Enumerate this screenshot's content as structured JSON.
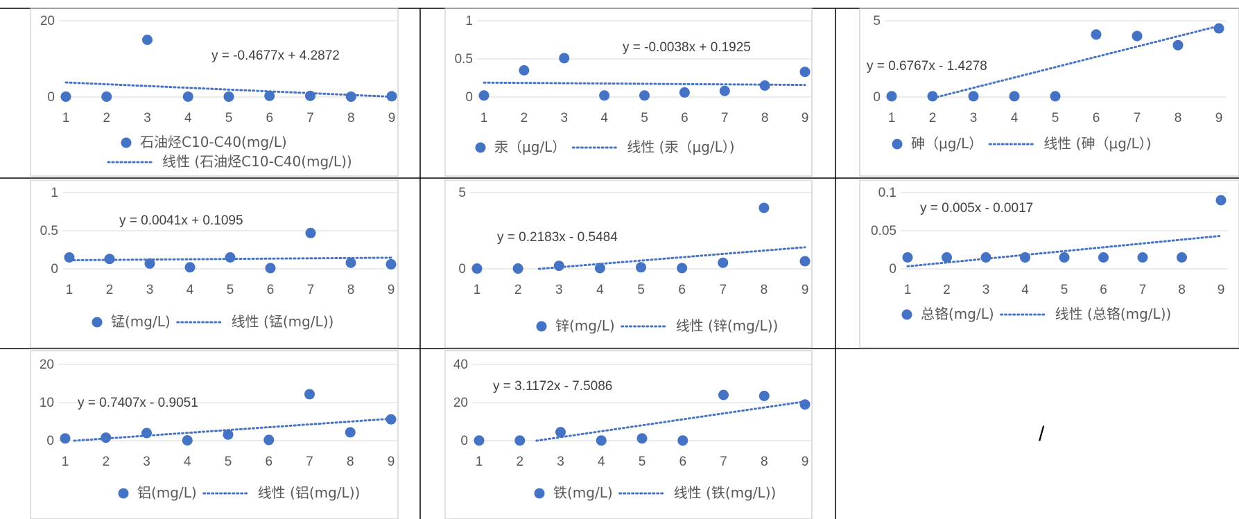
{
  "colors": {
    "marker": "#4472C4",
    "trend": "#4472C4",
    "gridline": "#D9D9D9",
    "text": "#595959",
    "frame": "#BFBFBF",
    "table_border": "#000000"
  },
  "empty_cell_mark": "/",
  "chart_data": [
    {
      "type": "scatter",
      "trendline": "linear",
      "x": [
        1,
        2,
        3,
        4,
        5,
        6,
        7,
        8,
        9
      ],
      "series": [
        {
          "name": "石油烃C10-C40(mg/L)",
          "values": [
            0.1,
            0.1,
            15,
            0.1,
            0.1,
            0.3,
            0.3,
            0.1,
            0.2
          ]
        }
      ],
      "trend_name": "线性 (石油烃C10-C40(mg/L))",
      "equation": "y = -0.4677x + 4.2872",
      "slope": -0.4677,
      "intercept": 4.2872,
      "ylim": [
        0,
        20
      ],
      "yticks": [
        "0",
        "20"
      ],
      "grid": true,
      "legend": "bottom",
      "legend_layout": "two-line"
    },
    {
      "type": "scatter",
      "trendline": "linear",
      "x": [
        1,
        2,
        3,
        4,
        5,
        6,
        7,
        8,
        9
      ],
      "series": [
        {
          "name": "汞（μg/L）",
          "values": [
            0.02,
            0.35,
            0.51,
            0.02,
            0.02,
            0.06,
            0.08,
            0.15,
            0.33
          ]
        }
      ],
      "trend_name": "线性 (汞（μg/L）)",
      "equation": "y = -0.0038x + 0.1925",
      "slope": -0.0038,
      "intercept": 0.1925,
      "ylim": [
        0,
        1
      ],
      "yticks": [
        "0",
        "0.5",
        "1"
      ],
      "grid": true,
      "legend": "bottom",
      "legend_layout": "one-line"
    },
    {
      "type": "scatter",
      "trendline": "linear",
      "x": [
        1,
        2,
        3,
        4,
        5,
        6,
        7,
        8,
        9
      ],
      "series": [
        {
          "name": "砷（μg/L）",
          "values": [
            0.05,
            0.05,
            0.05,
            0.05,
            0.05,
            4.1,
            4.0,
            3.4,
            4.5
          ]
        }
      ],
      "trend_name": "线性 (砷（μg/L）)",
      "equation": "y = 0.6767x - 1.4278",
      "slope": 0.6767,
      "intercept": -1.4278,
      "ylim": [
        0,
        5
      ],
      "yticks": [
        "0",
        "5"
      ],
      "grid": true,
      "legend": "bottom",
      "legend_layout": "one-line"
    },
    {
      "type": "scatter",
      "trendline": "linear",
      "x": [
        1,
        2,
        3,
        4,
        5,
        6,
        7,
        8,
        9
      ],
      "series": [
        {
          "name": "锰(mg/L)",
          "values": [
            0.15,
            0.13,
            0.07,
            0.02,
            0.15,
            0.01,
            0.47,
            0.08,
            0.06
          ]
        }
      ],
      "trend_name": "线性 (锰(mg/L))",
      "equation": "y = 0.0041x + 0.1095",
      "slope": 0.0041,
      "intercept": 0.1095,
      "ylim": [
        0,
        1
      ],
      "yticks": [
        "0",
        "0.5",
        "1"
      ],
      "grid": true,
      "legend": "bottom",
      "legend_layout": "one-line"
    },
    {
      "type": "scatter",
      "trendline": "linear",
      "x": [
        1,
        2,
        3,
        4,
        5,
        6,
        7,
        8,
        9
      ],
      "series": [
        {
          "name": "锌(mg/L)",
          "values": [
            0.02,
            0.02,
            0.2,
            0.05,
            0.1,
            0.05,
            0.4,
            4.0,
            0.5
          ]
        }
      ],
      "trend_name": "线性 (锌(mg/L))",
      "equation": "y = 0.2183x - 0.5484",
      "slope": 0.2183,
      "intercept": -0.5484,
      "ylim": [
        0,
        5
      ],
      "yticks": [
        "0",
        "5"
      ],
      "grid": true,
      "legend": "bottom",
      "legend_layout": "one-line"
    },
    {
      "type": "scatter",
      "trendline": "linear",
      "x": [
        1,
        2,
        3,
        4,
        5,
        6,
        7,
        8,
        9
      ],
      "series": [
        {
          "name": "总铬(mg/L)",
          "values": [
            0.015,
            0.015,
            0.015,
            0.015,
            0.015,
            0.015,
            0.015,
            0.015,
            0.09
          ]
        }
      ],
      "trend_name": "线性 (总铬(mg/L))",
      "equation": "y = 0.005x - 0.0017",
      "slope": 0.005,
      "intercept": -0.0017,
      "ylim": [
        0,
        0.1
      ],
      "yticks": [
        "0",
        "0.05",
        "0.1"
      ],
      "grid": true,
      "legend": "bottom",
      "legend_layout": "one-line"
    },
    {
      "type": "scatter",
      "trendline": "linear",
      "x": [
        1,
        2,
        3,
        4,
        5,
        6,
        7,
        8,
        9
      ],
      "series": [
        {
          "name": "铝(mg/L)",
          "values": [
            0.6,
            0.8,
            2.0,
            0.1,
            1.6,
            0.2,
            12.2,
            2.2,
            5.6
          ]
        }
      ],
      "trend_name": "线性 (铝(mg/L))",
      "equation": "y = 0.7407x - 0.9051",
      "slope": 0.7407,
      "intercept": -0.9051,
      "ylim": [
        0,
        20
      ],
      "yticks": [
        "0",
        "10",
        "20"
      ],
      "grid": true,
      "legend": "bottom",
      "legend_layout": "one-line"
    },
    {
      "type": "scatter",
      "trendline": "linear",
      "x": [
        1,
        2,
        3,
        4,
        5,
        6,
        7,
        8,
        9
      ],
      "series": [
        {
          "name": "铁(mg/L)",
          "values": [
            0.1,
            0.1,
            4.5,
            0.1,
            1.2,
            0.1,
            24,
            23.5,
            19
          ]
        }
      ],
      "trend_name": "线性 (铁(mg/L))",
      "equation": "y = 3.1172x - 7.5086",
      "slope": 3.1172,
      "intercept": -7.5086,
      "ylim": [
        0,
        40
      ],
      "yticks": [
        "0",
        "20",
        "40"
      ],
      "grid": true,
      "legend": "bottom",
      "legend_layout": "one-line"
    }
  ]
}
